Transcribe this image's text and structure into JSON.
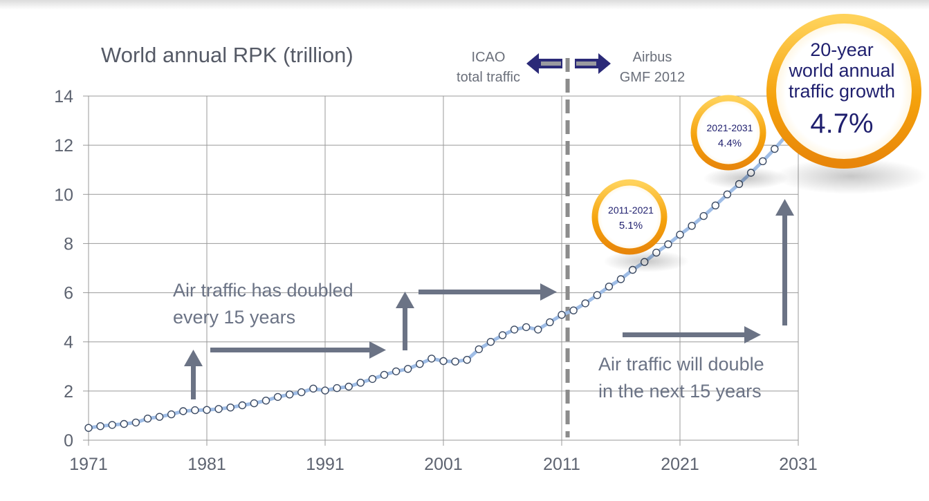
{
  "chart_data": {
    "type": "line",
    "title": "World annual RPK (trillion)",
    "xlim": [
      1971,
      2031
    ],
    "ylim": [
      0,
      14
    ],
    "x_ticks": [
      "1971",
      "1981",
      "1991",
      "2001",
      "2011",
      "2021",
      "2031"
    ],
    "y_ticks": [
      "0",
      "2",
      "4",
      "6",
      "8",
      "10",
      "12",
      "14"
    ],
    "grid": true,
    "series": [
      {
        "x": [
          1971,
          1972,
          1973,
          1974,
          1975,
          1976,
          1977,
          1978,
          1979,
          1980,
          1981,
          1982,
          1983,
          1984,
          1985,
          1986,
          1987,
          1988,
          1989,
          1990,
          1991,
          1992,
          1993,
          1994,
          1995,
          1996,
          1997,
          1998,
          1999,
          2000,
          2001,
          2002,
          2003,
          2004,
          2005,
          2006,
          2007,
          2008,
          2009,
          2010,
          2011,
          2012,
          2013,
          2014,
          2015,
          2016,
          2017,
          2018,
          2019,
          2020,
          2021,
          2022,
          2023,
          2024,
          2025,
          2026,
          2027,
          2028,
          2029,
          2030
        ],
        "y": [
          0.5,
          0.57,
          0.62,
          0.66,
          0.72,
          0.88,
          0.95,
          1.05,
          1.18,
          1.22,
          1.23,
          1.27,
          1.33,
          1.42,
          1.5,
          1.61,
          1.76,
          1.86,
          1.95,
          2.1,
          2.02,
          2.12,
          2.18,
          2.34,
          2.49,
          2.66,
          2.8,
          2.9,
          3.1,
          3.32,
          3.22,
          3.2,
          3.27,
          3.7,
          4.0,
          4.27,
          4.5,
          4.6,
          4.5,
          4.8,
          5.1,
          5.28,
          5.57,
          5.9,
          6.25,
          6.55,
          6.93,
          7.25,
          7.63,
          7.97,
          8.36,
          8.72,
          9.12,
          9.55,
          10.0,
          10.42,
          10.88,
          11.35,
          11.85,
          12.4
        ]
      }
    ],
    "divider_year": 2011.5
  },
  "annotations": {
    "icao_label_line1": "ICAO",
    "icao_label_line2": "total traffic",
    "airbus_label_line1": "Airbus",
    "airbus_label_line2": "GMF 2012",
    "doubled_line1": "Air traffic has doubled",
    "doubled_line2": "every 15 years",
    "will_double_line1": "Air traffic will double",
    "will_double_line2": "in the next 15 years",
    "badge_2011_line1": "2011-2021",
    "badge_2011_line2": "5.1%",
    "badge_2021_line1": "2021-2031",
    "badge_2021_line2": "4.4%",
    "badge_big_line1": "20-year",
    "badge_big_line2": "world annual",
    "badge_big_line3": "traffic growth",
    "badge_big_value": "4.7%"
  },
  "colors": {
    "grid": "#999999",
    "axis_text": "#5d6370",
    "line": "#9fbde6",
    "marker_stroke": "#3b4a63",
    "arrow": "#6b7385",
    "divider": "#8c8c8c",
    "nav_arrow": "#2b2a78",
    "badge_orange": "#f4a20c",
    "badge_text": "#1f1f6e"
  }
}
